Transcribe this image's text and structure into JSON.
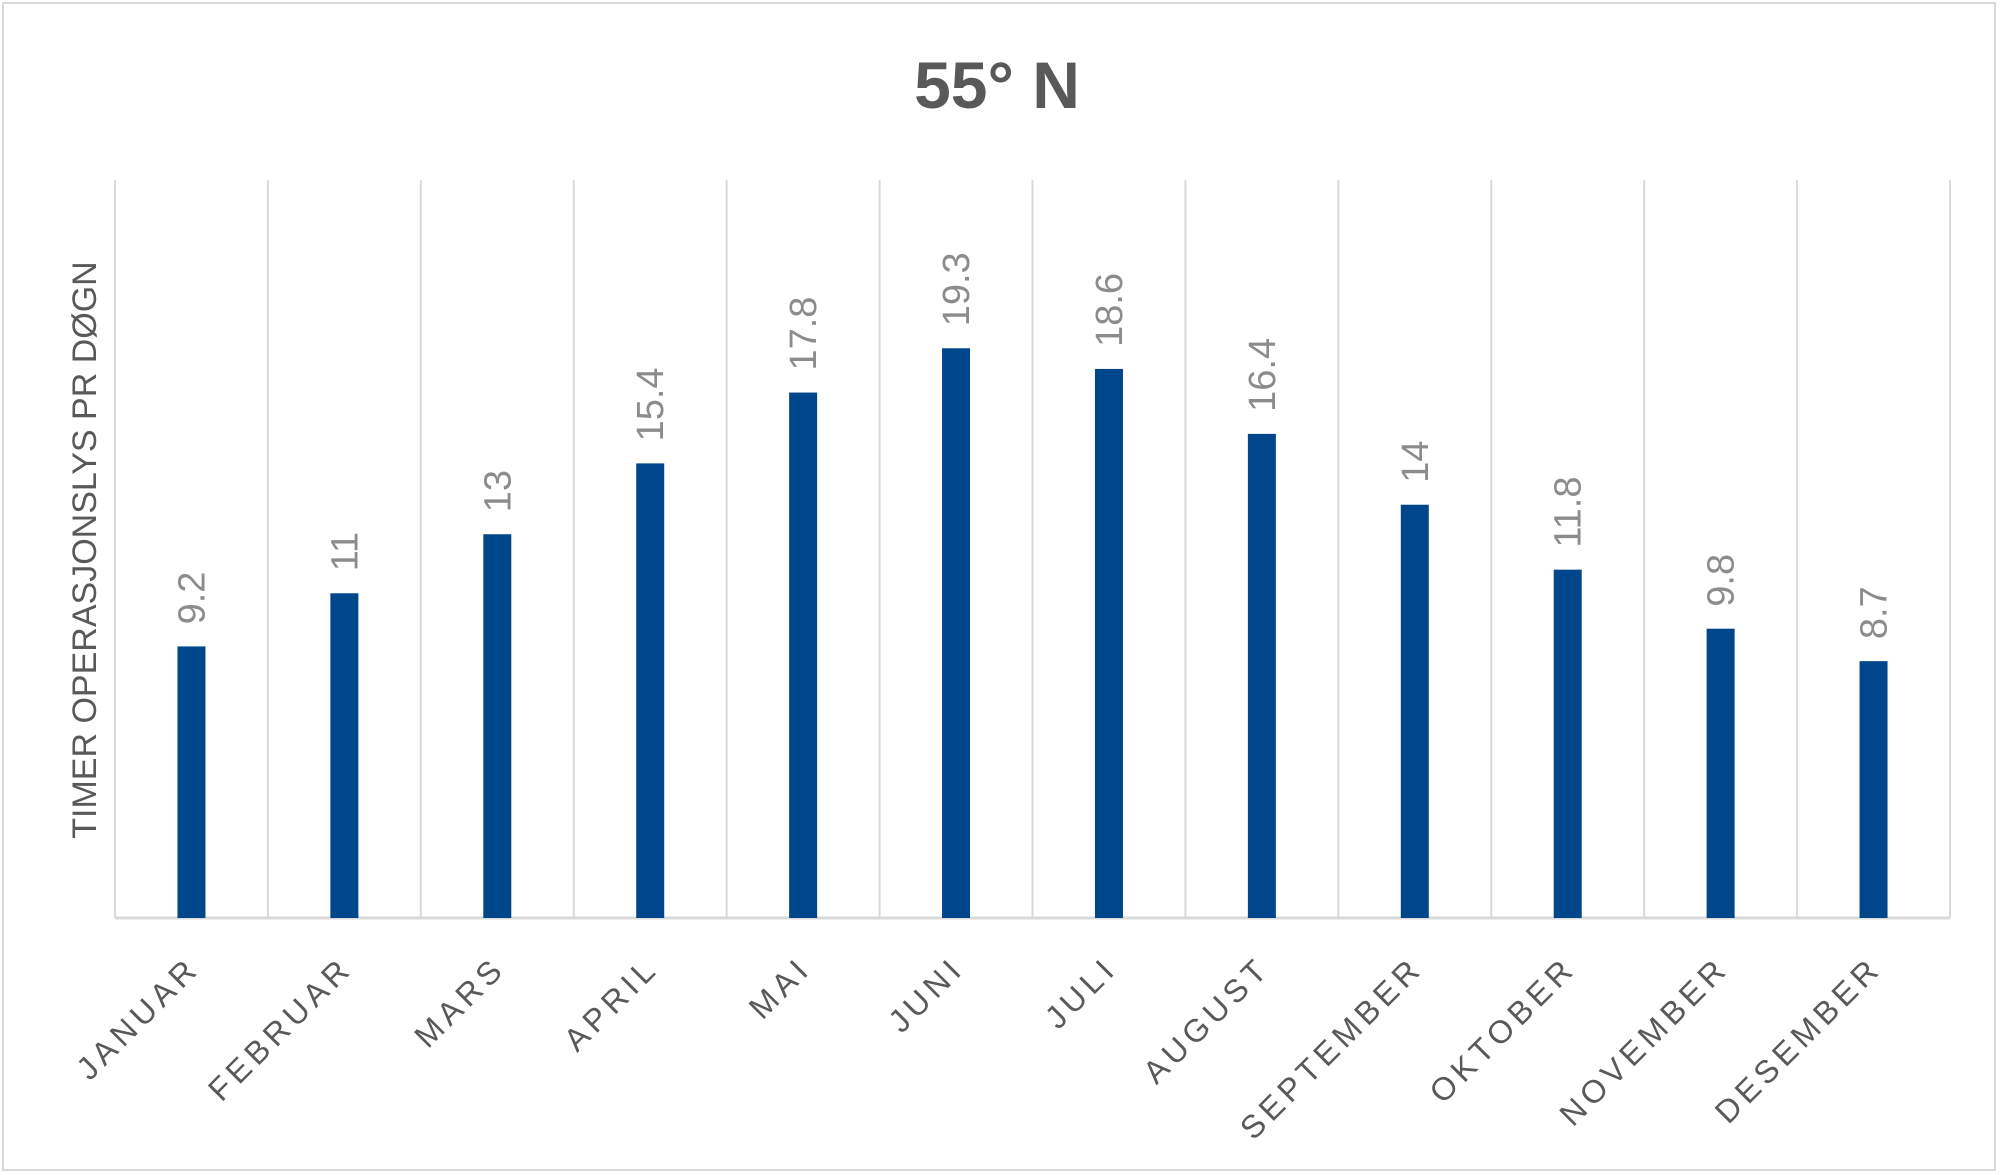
{
  "chart_data": {
    "type": "bar",
    "title": "55° N",
    "xlabel": "",
    "ylabel": "TIMER OPERASJONSLYS PR DØGN",
    "categories": [
      "JANUAR",
      "FEBRUAR",
      "MARS",
      "APRIL",
      "MAI",
      "JUNI",
      "JULI",
      "AUGUST",
      "SEPTEMBER",
      "OKTOBER",
      "NOVEMBER",
      "DESEMBER"
    ],
    "values": [
      9.2,
      11,
      13,
      15.4,
      17.8,
      19.3,
      18.6,
      16.4,
      14,
      11.8,
      9.8,
      8.7
    ],
    "ylim": [
      0,
      25
    ],
    "grid": "vertical",
    "legend": "none",
    "bar_color": "#00468B",
    "grid_color": "#d9d9d9"
  }
}
